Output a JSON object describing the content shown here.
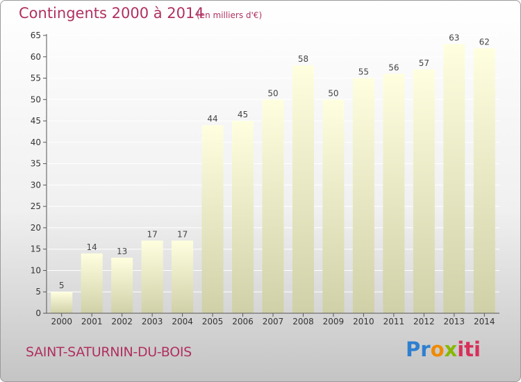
{
  "header": {
    "title": "Contingents 2000 à 2014",
    "subtitle": "(en milliers d'€)"
  },
  "footer": {
    "commune": "SAINT-SATURNIN-DU-BOIS",
    "logo_parts": [
      "Pr",
      "o",
      "x",
      "iti"
    ]
  },
  "colors": {
    "title": "#b03060",
    "bar_light": "#ffffe0",
    "bar_dark": "#d0d0a8",
    "grid": "#ffffff"
  },
  "chart_data": {
    "type": "bar",
    "title": "Contingents 2000 à 2014",
    "subtitle": "(en milliers d'€)",
    "categories": [
      "2000",
      "2001",
      "2002",
      "2003",
      "2004",
      "2005",
      "2006",
      "2007",
      "2008",
      "2009",
      "2010",
      "2011",
      "2012",
      "2013",
      "2014"
    ],
    "values": [
      5,
      14,
      13,
      17,
      17,
      44,
      45,
      50,
      58,
      50,
      55,
      56,
      57,
      63,
      62
    ],
    "ylim": [
      0,
      65
    ],
    "yticks": [
      0,
      5,
      10,
      15,
      20,
      25,
      30,
      35,
      40,
      45,
      50,
      55,
      60,
      65
    ],
    "grid": true,
    "data_labels": true
  }
}
